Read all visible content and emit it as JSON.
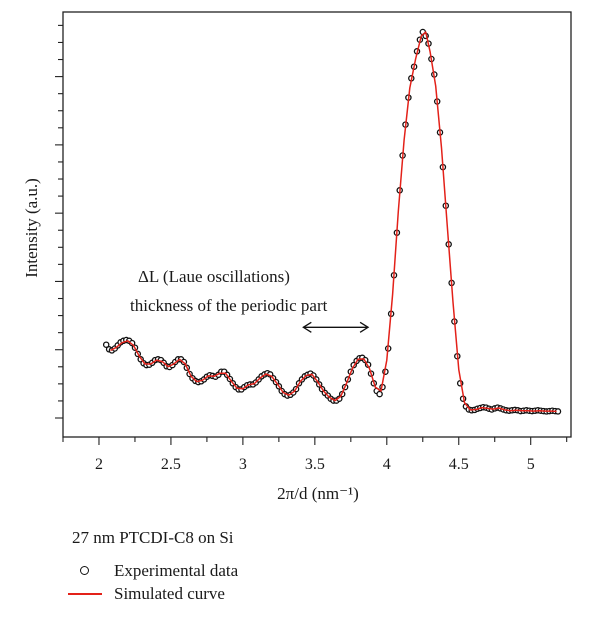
{
  "chart_data": {
    "type": "line",
    "title": "",
    "xlabel": "2π/d (nm⁻¹)",
    "ylabel": "Intensity (a.u.)",
    "xlim": [
      1.75,
      5.28
    ],
    "ylim": [
      0,
      1
    ],
    "x_ticks": [
      "2",
      "2.5",
      "3",
      "3.5",
      "4",
      "4.5",
      "5"
    ],
    "y_tick_labels_shown": false,
    "grid": false,
    "legend_position": "bottom-left-outside",
    "annotation": {
      "line1": "ΔL (Laue oscillations)",
      "line2": "thickness of the periodic part",
      "arrow_from_x": 3.42,
      "arrow_to_x": 3.87,
      "arrow_y": 0.235
    },
    "series": [
      {
        "name": "Experimental data",
        "kind": "scatter",
        "color": "#111111",
        "points": [
          [
            2.05,
            0.19
          ],
          [
            2.07,
            0.178
          ],
          [
            2.09,
            0.175
          ],
          [
            2.11,
            0.18
          ],
          [
            2.13,
            0.188
          ],
          [
            2.15,
            0.196
          ],
          [
            2.17,
            0.2
          ],
          [
            2.19,
            0.202
          ],
          [
            2.21,
            0.2
          ],
          [
            2.23,
            0.194
          ],
          [
            2.25,
            0.182
          ],
          [
            2.27,
            0.166
          ],
          [
            2.29,
            0.152
          ],
          [
            2.31,
            0.142
          ],
          [
            2.33,
            0.137
          ],
          [
            2.35,
            0.138
          ],
          [
            2.37,
            0.143
          ],
          [
            2.39,
            0.15
          ],
          [
            2.41,
            0.152
          ],
          [
            2.43,
            0.15
          ],
          [
            2.45,
            0.143
          ],
          [
            2.47,
            0.134
          ],
          [
            2.49,
            0.132
          ],
          [
            2.51,
            0.137
          ],
          [
            2.53,
            0.145
          ],
          [
            2.55,
            0.152
          ],
          [
            2.57,
            0.152
          ],
          [
            2.59,
            0.145
          ],
          [
            2.61,
            0.13
          ],
          [
            2.63,
            0.114
          ],
          [
            2.65,
            0.103
          ],
          [
            2.67,
            0.096
          ],
          [
            2.69,
            0.093
          ],
          [
            2.71,
            0.095
          ],
          [
            2.73,
            0.1
          ],
          [
            2.75,
            0.107
          ],
          [
            2.77,
            0.111
          ],
          [
            2.79,
            0.109
          ],
          [
            2.81,
            0.107
          ],
          [
            2.83,
            0.112
          ],
          [
            2.85,
            0.12
          ],
          [
            2.87,
            0.12
          ],
          [
            2.89,
            0.112
          ],
          [
            2.91,
            0.101
          ],
          [
            2.93,
            0.09
          ],
          [
            2.95,
            0.08
          ],
          [
            2.97,
            0.074
          ],
          [
            2.99,
            0.074
          ],
          [
            3.01,
            0.08
          ],
          [
            3.03,
            0.085
          ],
          [
            3.05,
            0.087
          ],
          [
            3.07,
            0.087
          ],
          [
            3.09,
            0.092
          ],
          [
            3.11,
            0.1
          ],
          [
            3.13,
            0.108
          ],
          [
            3.15,
            0.113
          ],
          [
            3.17,
            0.116
          ],
          [
            3.19,
            0.113
          ],
          [
            3.21,
            0.103
          ],
          [
            3.23,
            0.093
          ],
          [
            3.25,
            0.082
          ],
          [
            3.27,
            0.07
          ],
          [
            3.29,
            0.062
          ],
          [
            3.31,
            0.058
          ],
          [
            3.33,
            0.06
          ],
          [
            3.35,
            0.066
          ],
          [
            3.37,
            0.075
          ],
          [
            3.39,
            0.09
          ],
          [
            3.41,
            0.1
          ],
          [
            3.43,
            0.108
          ],
          [
            3.45,
            0.112
          ],
          [
            3.47,
            0.115
          ],
          [
            3.49,
            0.11
          ],
          [
            3.51,
            0.1
          ],
          [
            3.53,
            0.087
          ],
          [
            3.55,
            0.075
          ],
          [
            3.57,
            0.065
          ],
          [
            3.59,
            0.058
          ],
          [
            3.61,
            0.05
          ],
          [
            3.63,
            0.045
          ],
          [
            3.65,
            0.045
          ],
          [
            3.67,
            0.05
          ],
          [
            3.69,
            0.062
          ],
          [
            3.71,
            0.08
          ],
          [
            3.73,
            0.1
          ],
          [
            3.75,
            0.12
          ],
          [
            3.77,
            0.137
          ],
          [
            3.79,
            0.148
          ],
          [
            3.81,
            0.155
          ],
          [
            3.83,
            0.156
          ],
          [
            3.85,
            0.15
          ],
          [
            3.87,
            0.138
          ],
          [
            3.89,
            0.115
          ],
          [
            3.91,
            0.09
          ],
          [
            3.93,
            0.07
          ],
          [
            3.95,
            0.062
          ],
          [
            3.97,
            0.08
          ],
          [
            3.99,
            0.12
          ],
          [
            4.01,
            0.18
          ],
          [
            4.03,
            0.27
          ],
          [
            4.05,
            0.37
          ],
          [
            4.07,
            0.48
          ],
          [
            4.09,
            0.59
          ],
          [
            4.11,
            0.68
          ],
          [
            4.13,
            0.76
          ],
          [
            4.15,
            0.83
          ],
          [
            4.17,
            0.88
          ],
          [
            4.19,
            0.91
          ],
          [
            4.21,
            0.95
          ],
          [
            4.23,
            0.98
          ],
          [
            4.25,
            1.0
          ],
          [
            4.27,
            0.99
          ],
          [
            4.29,
            0.97
          ],
          [
            4.31,
            0.93
          ],
          [
            4.33,
            0.89
          ],
          [
            4.35,
            0.82
          ],
          [
            4.37,
            0.74
          ],
          [
            4.39,
            0.65
          ],
          [
            4.41,
            0.55
          ],
          [
            4.43,
            0.45
          ],
          [
            4.45,
            0.35
          ],
          [
            4.47,
            0.25
          ],
          [
            4.49,
            0.16
          ],
          [
            4.51,
            0.09
          ],
          [
            4.53,
            0.05
          ],
          [
            4.55,
            0.03
          ],
          [
            4.57,
            0.022
          ],
          [
            4.59,
            0.02
          ],
          [
            4.61,
            0.021
          ],
          [
            4.63,
            0.024
          ],
          [
            4.65,
            0.026
          ],
          [
            4.67,
            0.028
          ],
          [
            4.69,
            0.027
          ],
          [
            4.71,
            0.024
          ],
          [
            4.73,
            0.022
          ],
          [
            4.75,
            0.025
          ],
          [
            4.77,
            0.027
          ],
          [
            4.79,
            0.025
          ],
          [
            4.81,
            0.022
          ],
          [
            4.83,
            0.02
          ],
          [
            4.85,
            0.019
          ],
          [
            4.87,
            0.02
          ],
          [
            4.89,
            0.021
          ],
          [
            4.91,
            0.02
          ],
          [
            4.93,
            0.018
          ],
          [
            4.95,
            0.019
          ],
          [
            4.97,
            0.02
          ],
          [
            4.99,
            0.019
          ],
          [
            5.01,
            0.018
          ],
          [
            5.03,
            0.019
          ],
          [
            5.05,
            0.02
          ],
          [
            5.07,
            0.019
          ],
          [
            5.09,
            0.018
          ],
          [
            5.11,
            0.017
          ],
          [
            5.13,
            0.018
          ],
          [
            5.15,
            0.019
          ],
          [
            5.17,
            0.018
          ],
          [
            5.19,
            0.017
          ]
        ]
      },
      {
        "name": "Simulated curve",
        "kind": "line",
        "color": "#e32119",
        "points": [
          [
            2.08,
            0.175
          ],
          [
            2.12,
            0.183
          ],
          [
            2.16,
            0.195
          ],
          [
            2.2,
            0.2
          ],
          [
            2.24,
            0.188
          ],
          [
            2.28,
            0.16
          ],
          [
            2.32,
            0.14
          ],
          [
            2.36,
            0.14
          ],
          [
            2.4,
            0.15
          ],
          [
            2.44,
            0.146
          ],
          [
            2.48,
            0.133
          ],
          [
            2.52,
            0.14
          ],
          [
            2.56,
            0.152
          ],
          [
            2.6,
            0.14
          ],
          [
            2.64,
            0.108
          ],
          [
            2.68,
            0.094
          ],
          [
            2.72,
            0.098
          ],
          [
            2.76,
            0.109
          ],
          [
            2.8,
            0.108
          ],
          [
            2.84,
            0.116
          ],
          [
            2.88,
            0.116
          ],
          [
            2.92,
            0.095
          ],
          [
            2.96,
            0.077
          ],
          [
            3.0,
            0.076
          ],
          [
            3.04,
            0.086
          ],
          [
            3.08,
            0.089
          ],
          [
            3.12,
            0.104
          ],
          [
            3.16,
            0.114
          ],
          [
            3.2,
            0.108
          ],
          [
            3.24,
            0.088
          ],
          [
            3.28,
            0.066
          ],
          [
            3.32,
            0.059
          ],
          [
            3.36,
            0.07
          ],
          [
            3.4,
            0.095
          ],
          [
            3.44,
            0.11
          ],
          [
            3.48,
            0.113
          ],
          [
            3.52,
            0.094
          ],
          [
            3.56,
            0.07
          ],
          [
            3.6,
            0.054
          ],
          [
            3.64,
            0.045
          ],
          [
            3.68,
            0.056
          ],
          [
            3.72,
            0.09
          ],
          [
            3.76,
            0.128
          ],
          [
            3.8,
            0.152
          ],
          [
            3.84,
            0.153
          ],
          [
            3.88,
            0.128
          ],
          [
            3.92,
            0.08
          ],
          [
            3.96,
            0.07
          ],
          [
            4.0,
            0.15
          ],
          [
            4.04,
            0.32
          ],
          [
            4.08,
            0.535
          ],
          [
            4.12,
            0.72
          ],
          [
            4.16,
            0.855
          ],
          [
            4.2,
            0.93
          ],
          [
            4.24,
            0.99
          ],
          [
            4.27,
            1.0
          ],
          [
            4.3,
            0.95
          ],
          [
            4.34,
            0.86
          ],
          [
            4.38,
            0.7
          ],
          [
            4.42,
            0.5
          ],
          [
            4.46,
            0.3
          ],
          [
            4.5,
            0.125
          ],
          [
            4.54,
            0.04
          ],
          [
            4.58,
            0.021
          ],
          [
            4.62,
            0.022
          ],
          [
            4.66,
            0.027
          ],
          [
            4.7,
            0.025
          ],
          [
            4.74,
            0.023
          ],
          [
            4.78,
            0.026
          ],
          [
            4.82,
            0.021
          ],
          [
            4.86,
            0.019
          ],
          [
            4.9,
            0.02
          ],
          [
            4.94,
            0.019
          ],
          [
            4.98,
            0.019
          ],
          [
            5.02,
            0.018
          ],
          [
            5.06,
            0.019
          ],
          [
            5.1,
            0.018
          ],
          [
            5.14,
            0.018
          ],
          [
            5.18,
            0.017
          ]
        ]
      }
    ]
  },
  "legend": {
    "title": "27 nm PTCDI-C8 on Si",
    "items": [
      {
        "label": "Experimental data",
        "symbol": "open-circle"
      },
      {
        "label": "Simulated curve",
        "symbol": "red-line"
      }
    ]
  }
}
